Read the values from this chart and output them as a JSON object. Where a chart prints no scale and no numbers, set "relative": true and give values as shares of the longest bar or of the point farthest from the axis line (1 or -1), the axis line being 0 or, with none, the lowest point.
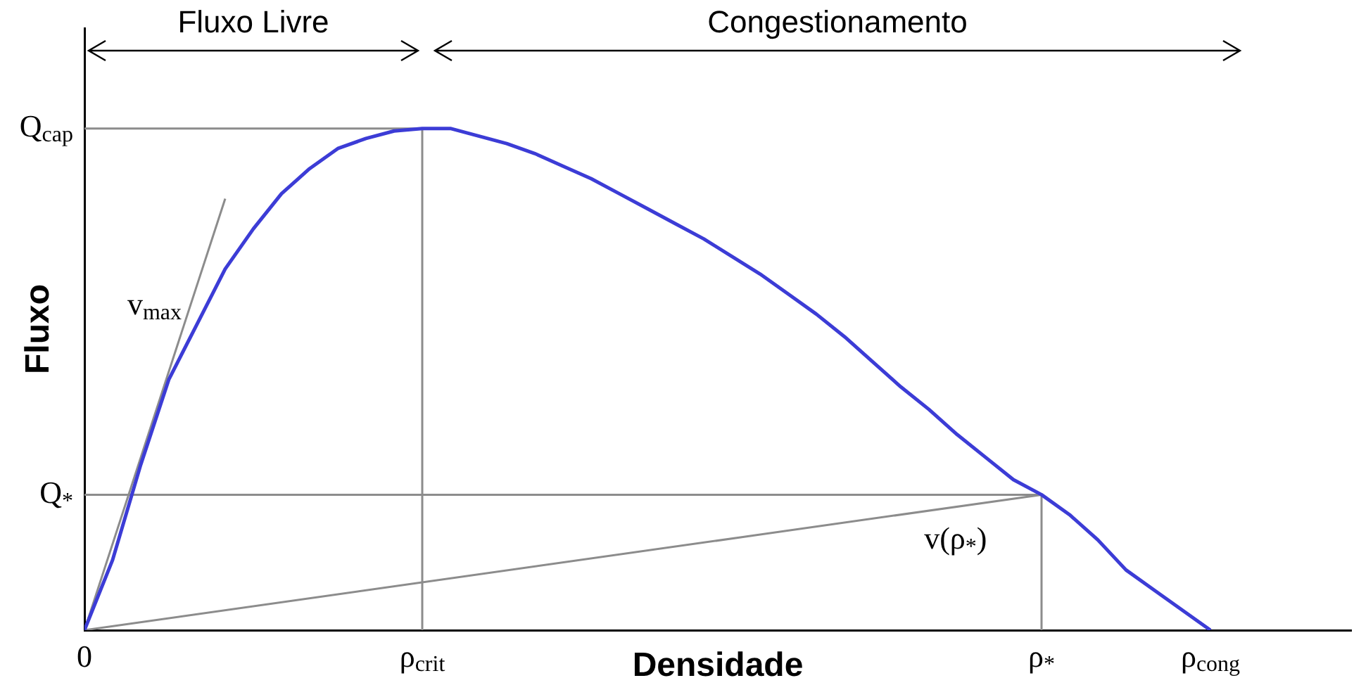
{
  "chart_data": {
    "type": "line",
    "relative": true,
    "xlabel": "Densidade",
    "ylabel": "Fluxo",
    "marker": "none",
    "grid": false,
    "legend": false,
    "categories": [
      "0",
      null,
      null,
      null,
      null,
      null,
      null,
      null,
      null,
      null,
      null,
      null,
      "ρ$_{crit}$",
      null,
      null,
      null,
      null,
      null,
      null,
      null,
      null,
      null,
      null,
      null,
      null,
      null,
      null,
      null,
      null,
      null,
      null,
      null,
      null,
      null,
      "ρ$_{*}$",
      null,
      null,
      null,
      null,
      null,
      "ρ$_{cong}$",
      null,
      null,
      null,
      null,
      null
    ],
    "annotations": [
      "Fluxo Livre",
      "Congestionamento",
      "v$_{max}$",
      "v(ρ$_{*}$)",
      {
        "text": "Q$_{cap}$",
        "x": "0",
        "y": 1
      },
      {
        "text": "Q$_{*}$",
        "x": "0",
        "y": 0.27
      }
    ],
    "series": [
      {
        "color": "#3c3cd6",
        "values": [
          0,
          0.14,
          0.33,
          0.5,
          0.61,
          0.72,
          0.8,
          0.87,
          0.92,
          0.96,
          0.98,
          0.995,
          1,
          1,
          0.985,
          0.97,
          0.95,
          0.925,
          0.9,
          0.87,
          0.84,
          0.81,
          0.78,
          0.745,
          0.71,
          0.67,
          0.63,
          0.585,
          0.535,
          0.485,
          0.44,
          0.39,
          0.345,
          0.3,
          0.27,
          0.23,
          0.18,
          0.12,
          0.08,
          0.04,
          0,
          null,
          null,
          null,
          null,
          null
        ]
      },
      {
        "color": "#8c8c8c",
        "values": [
          0,
          null,
          null,
          null,
          null,
          0.86,
          null,
          null,
          null,
          null,
          null,
          null,
          null,
          null,
          null,
          null,
          null,
          null,
          null,
          null,
          null,
          null,
          null,
          null,
          null,
          null,
          null,
          null,
          null,
          null,
          null,
          null,
          null,
          null,
          null,
          null,
          null,
          null,
          null,
          null,
          null,
          null,
          null,
          null,
          null,
          null
        ]
      },
      {
        "color": "#8c8c8c",
        "x": [
          "0",
          "ρ$_{*}$"
        ],
        "values": [
          0,
          0.27
        ]
      },
      {
        "color": "#8c8c8c",
        "x": [
          "0",
          "ρ$_{crit}$",
          "ρ$_{crit}$"
        ],
        "values": [
          1,
          1,
          0
        ]
      },
      {
        "color": "#8c8c8c",
        "x": [
          "0",
          "ρ$_{*}$",
          "ρ$_{*}$"
        ],
        "values": [
          0.27,
          0.27,
          0
        ]
      }
    ]
  }
}
